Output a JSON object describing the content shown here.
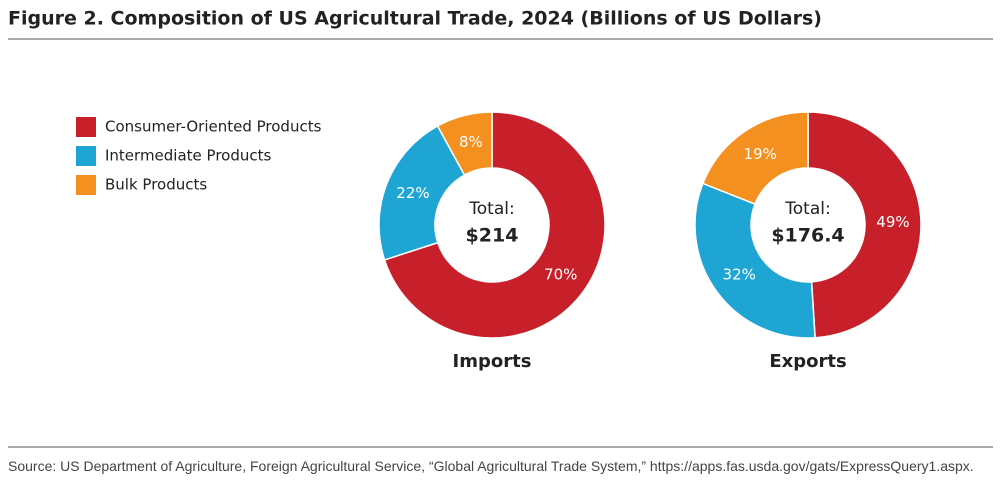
{
  "title": "Figure 2. Composition of US Agricultural Trade, 2024 (Billions of US Dollars)",
  "legend": [
    {
      "name": "Consumer-Oriented Products",
      "color": "#c8202a"
    },
    {
      "name": "Intermediate Products",
      "color": "#1ea5d4"
    },
    {
      "name": "Bulk Products",
      "color": "#f39020"
    }
  ],
  "chart_data": [
    {
      "type": "donut",
      "label": "Imports",
      "total_label": "Total:",
      "total": "$214",
      "values": [
        70,
        22,
        8
      ],
      "value_labels": [
        "70%",
        "22%",
        "8%"
      ]
    },
    {
      "type": "donut",
      "label": "Exports",
      "total_label": "Total:",
      "total": "$176.4",
      "values": [
        49,
        32,
        19
      ],
      "value_labels": [
        "49%",
        "32%",
        "19%"
      ]
    }
  ],
  "source": "Source: US Department of Agriculture, Foreign Agricultural Service, “Global Agricultural Trade System,” https://apps.fas.usda.gov/gats/ExpressQuery1.aspx."
}
